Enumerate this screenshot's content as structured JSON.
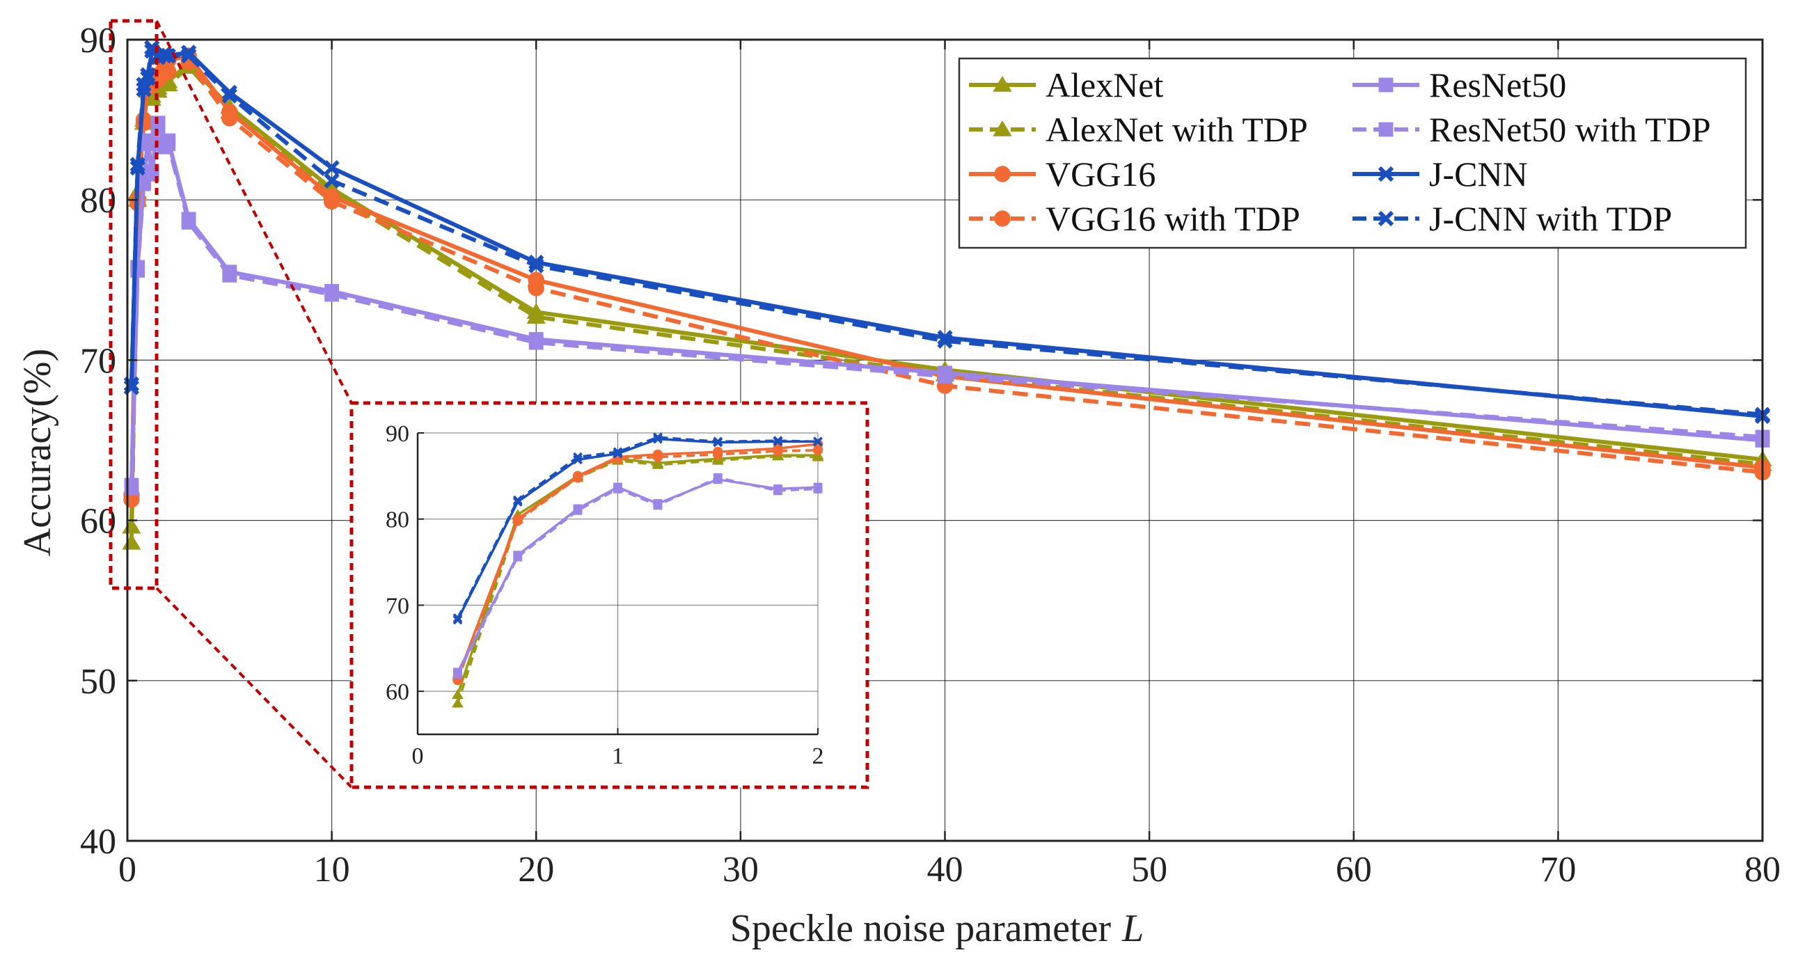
{
  "chart_data": {
    "type": "line",
    "xlabel": "Speckle noise parameter",
    "xlabel_var": "L",
    "ylabel": "Accuracy(%)",
    "xlim": [
      0,
      80
    ],
    "ylim": [
      40,
      90
    ],
    "xticks": [
      0,
      10,
      20,
      30,
      40,
      50,
      60,
      70,
      80
    ],
    "yticks": [
      40,
      50,
      60,
      70,
      80,
      90
    ],
    "grid": true,
    "legend_position": "top-right",
    "colors": {
      "alexnet": "#9a9a10",
      "vgg16": "#f26a32",
      "resnet50": "#9b86e8",
      "jcnn": "#1a4fc0",
      "zoom_box": "#c00000",
      "grid": "#000000"
    },
    "series": [
      {
        "key": "alexnet",
        "name": "AlexNet",
        "color": "#9a9a10",
        "marker": "triangle",
        "dashed": false,
        "x": [
          0.2,
          0.5,
          0.8,
          1.0,
          1.2,
          1.5,
          1.8,
          2,
          3,
          5,
          10,
          20,
          40,
          80
        ],
        "y": [
          59.6,
          80.5,
          85.0,
          87.0,
          86.5,
          87.0,
          87.4,
          87.4,
          88.5,
          85.8,
          80.7,
          73.0,
          69.4,
          63.8
        ]
      },
      {
        "key": "alexnet",
        "name": "AlexNet with TDP",
        "color": "#9a9a10",
        "marker": "triangle",
        "dashed": true,
        "x": [
          0.2,
          0.5,
          0.8,
          1.0,
          1.2,
          1.5,
          1.8,
          2,
          3,
          5,
          10,
          20,
          40,
          80
        ],
        "y": [
          58.6,
          80.0,
          84.8,
          86.8,
          86.3,
          86.8,
          87.3,
          87.2,
          88.3,
          85.5,
          80.4,
          72.7,
          69.1,
          63.5
        ]
      },
      {
        "key": "vgg16",
        "name": "VGG16",
        "color": "#f26a32",
        "marker": "circle",
        "dashed": false,
        "x": [
          0.2,
          0.5,
          0.8,
          1.0,
          1.2,
          1.5,
          1.8,
          2,
          3,
          5,
          10,
          20,
          40,
          80
        ],
        "y": [
          61.6,
          80.0,
          85.0,
          87.2,
          87.5,
          87.8,
          88.2,
          88.7,
          89.0,
          85.5,
          80.2,
          75.0,
          69.0,
          63.3
        ]
      },
      {
        "key": "vgg16",
        "name": "VGG16 with TDP",
        "color": "#f26a32",
        "marker": "circle",
        "dashed": true,
        "x": [
          0.2,
          0.5,
          0.8,
          1.0,
          1.2,
          1.5,
          1.8,
          2,
          3,
          5,
          10,
          20,
          40,
          80
        ],
        "y": [
          61.3,
          79.8,
          84.8,
          87.0,
          87.2,
          87.5,
          87.9,
          88.0,
          88.6,
          85.1,
          79.9,
          74.5,
          68.4,
          63.0
        ]
      },
      {
        "key": "resnet50",
        "name": "ResNet50",
        "color": "#9b86e8",
        "marker": "square",
        "dashed": false,
        "x": [
          0.2,
          0.5,
          0.8,
          1.0,
          1.2,
          1.5,
          1.8,
          2,
          3,
          5,
          10,
          20,
          40,
          80
        ],
        "y": [
          62.2,
          75.8,
          81.2,
          83.7,
          81.8,
          84.6,
          83.5,
          83.7,
          78.8,
          75.5,
          74.3,
          71.3,
          69.2,
          65.0
        ]
      },
      {
        "key": "resnet50",
        "name": "ResNet50 with TDP",
        "color": "#9b86e8",
        "marker": "square",
        "dashed": true,
        "x": [
          0.2,
          0.5,
          0.8,
          1.0,
          1.2,
          1.5,
          1.8,
          2,
          3,
          5,
          10,
          20,
          40,
          80
        ],
        "y": [
          62.0,
          75.6,
          81.0,
          83.5,
          81.6,
          84.8,
          83.3,
          83.5,
          78.6,
          75.3,
          74.1,
          71.1,
          69.0,
          65.2
        ]
      },
      {
        "key": "jcnn",
        "name": "J-CNN",
        "color": "#1a4fc0",
        "marker": "x",
        "dashed": false,
        "x": [
          0.2,
          0.5,
          0.8,
          1.0,
          1.2,
          1.5,
          1.8,
          2,
          3,
          5,
          10,
          20,
          40,
          80
        ],
        "y": [
          68.3,
          82.0,
          86.9,
          87.6,
          89.3,
          88.9,
          89.0,
          89.0,
          89.2,
          86.7,
          82.0,
          76.1,
          71.4,
          66.5
        ]
      },
      {
        "key": "jcnn",
        "name": "J-CNN with TDP",
        "color": "#1a4fc0",
        "marker": "x",
        "dashed": true,
        "x": [
          0.2,
          0.5,
          0.8,
          1.0,
          1.2,
          1.5,
          1.8,
          2,
          3,
          5,
          10,
          20,
          40,
          80
        ],
        "y": [
          68.5,
          82.2,
          87.2,
          87.8,
          89.5,
          89.0,
          89.1,
          89.0,
          89.0,
          86.5,
          81.2,
          75.9,
          71.2,
          66.6
        ]
      }
    ],
    "inset": {
      "xlim": [
        0,
        2
      ],
      "ylim": [
        55,
        90
      ],
      "xticks": [
        0,
        1,
        2
      ],
      "yticks": [
        60,
        70,
        80,
        90
      ],
      "zoom_region_x": [
        0,
        1.4
      ],
      "zoom_region_y": [
        55.5,
        90.5
      ]
    }
  }
}
